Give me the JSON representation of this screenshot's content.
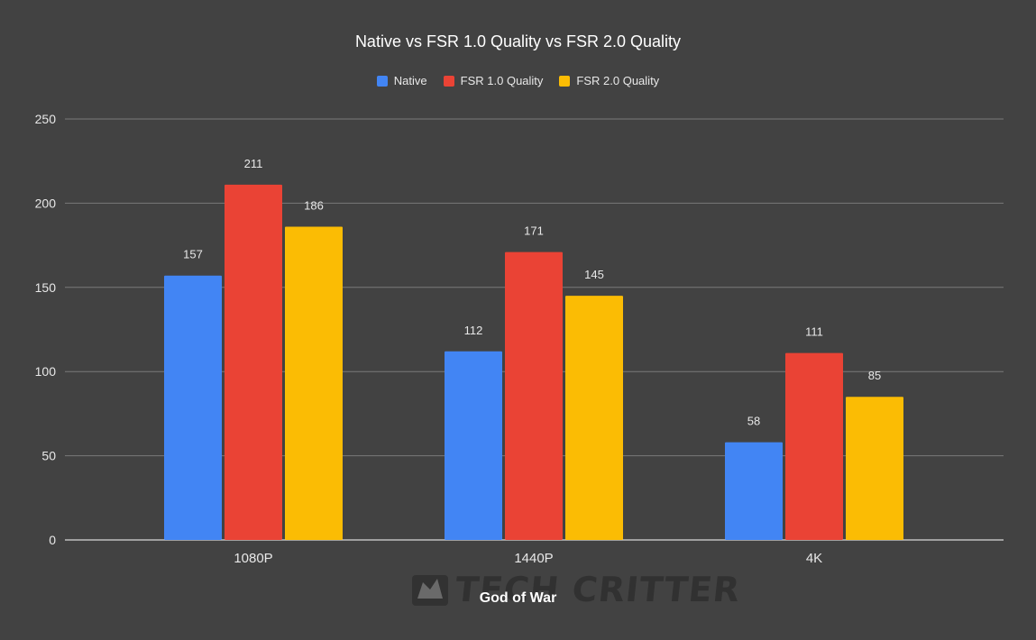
{
  "chart_data": {
    "type": "bar",
    "title": "Native vs FSR 1.0 Quality vs FSR 2.0 Quality",
    "xlabel": "God of War",
    "ylabel": "",
    "categories": [
      "1080P",
      "1440P",
      "4K"
    ],
    "series": [
      {
        "name": "Native",
        "color": "#4285f4",
        "values": [
          157,
          112,
          58
        ]
      },
      {
        "name": "FSR 1.0 Quality",
        "color": "#ea4335",
        "values": [
          211,
          171,
          111
        ]
      },
      {
        "name": "FSR 2.0 Quality",
        "color": "#fbbc04",
        "values": [
          186,
          145,
          85
        ]
      }
    ],
    "ylim": [
      0,
      250
    ],
    "yticks": [
      "0",
      "50",
      "100",
      "150",
      "200",
      "250"
    ],
    "grid": true,
    "legend_position": "top-center"
  },
  "watermark": {
    "text": "TECH CRITTER",
    "icon": "shark-logo-icon"
  }
}
